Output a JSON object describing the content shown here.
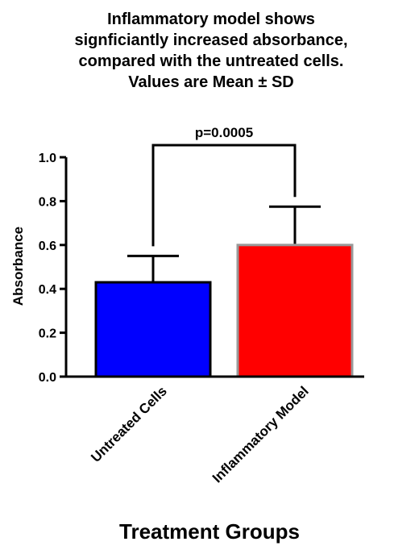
{
  "chart_data": {
    "type": "bar",
    "title": [
      "Inflammatory model shows",
      "signficiantly increased absorbance,",
      "compared with the untreated cells.",
      "Values are Mean ± SD"
    ],
    "categories": [
      "Untreated Cells",
      "Inflammatory Model"
    ],
    "values": [
      0.43,
      0.6
    ],
    "errors": [
      0.12,
      0.175
    ],
    "colors": [
      "#0000ff",
      "#ff0000"
    ],
    "edgecolors": [
      "#000000",
      "#999999"
    ],
    "xlabel": "Treatment Groups",
    "ylabel": "Absorbance",
    "ylim": [
      0,
      1
    ],
    "yticks": [
      {
        "value": 0,
        "label": "0.0"
      },
      {
        "value": 0.2,
        "label": "0.2"
      },
      {
        "value": 0.4,
        "label": "0.4"
      },
      {
        "value": 0.6,
        "label": "0.6"
      },
      {
        "value": 0.8,
        "label": "0.8"
      },
      {
        "value": 1,
        "label": "1.0"
      }
    ],
    "annotation": "p=0.0005"
  }
}
